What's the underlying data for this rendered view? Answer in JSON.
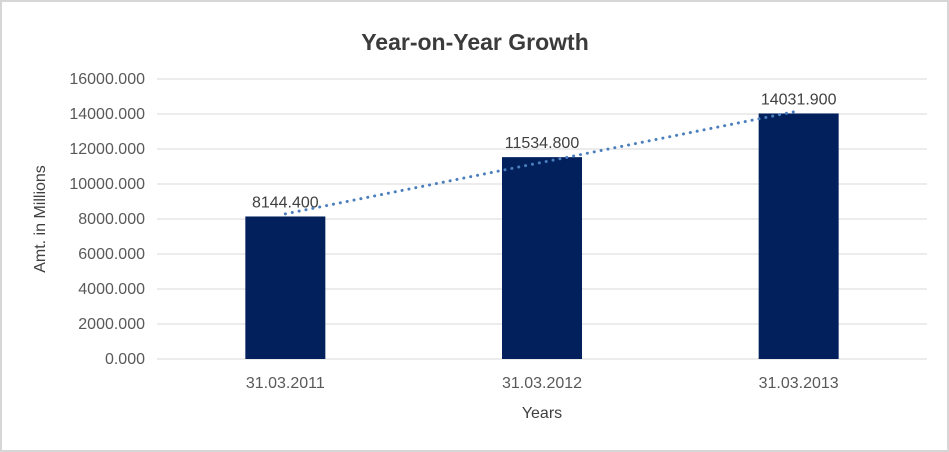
{
  "chart_data": {
    "type": "bar",
    "title": "Year-on-Year Growth",
    "categories": [
      "31.03.2011",
      "31.03.2012",
      "31.03.2013"
    ],
    "values": [
      8144.4,
      11534.8,
      14031.9
    ],
    "value_labels": [
      "8144.400",
      "11534.800",
      "14031.900"
    ],
    "xlabel": "Years",
    "ylabel": "Amt. in Millions",
    "ylim": [
      0,
      16000
    ],
    "ytick_step": 2000,
    "ytick_labels": [
      "0.000",
      "2000.000",
      "4000.000",
      "6000.000",
      "8000.000",
      "10000.000",
      "12000.000",
      "14000.000",
      "16000.000"
    ],
    "grid": true,
    "legend": "none",
    "trendline": {
      "type": "linear",
      "style": "dotted"
    },
    "colors": {
      "bar": "#02215C",
      "trendline": "#4A7EBD",
      "gridline": "#D9D9D9",
      "tick_text": "#595959",
      "value_label_text": "#404040",
      "title_text": "#3B3B3B",
      "axis_title_text": "#404040",
      "border": "#D6D6D6",
      "background": "#FFFFFF"
    }
  }
}
